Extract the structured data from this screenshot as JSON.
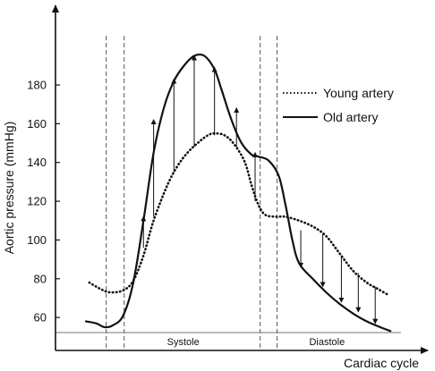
{
  "chart_data": {
    "type": "line",
    "xlabel": "Cardiac cycle",
    "ylabel": "Aortic pressure (mmHg)",
    "ylim": [
      43,
      210
    ],
    "xlim": [
      0,
      1
    ],
    "y_ticks": [
      60,
      80,
      100,
      120,
      140,
      160,
      180
    ],
    "grid": false,
    "legend": {
      "position": "right"
    },
    "phases": [
      {
        "label": "Systole",
        "from": 0.15,
        "to": 0.605
      },
      {
        "label": "Diastole",
        "from": 0.605,
        "to": 1.0
      }
    ],
    "phase_markers": [
      0.15,
      0.203,
      0.605,
      0.655
    ],
    "series": [
      {
        "name": "Young artery",
        "style": "dotted",
        "x": [
          0.1,
          0.13,
          0.16,
          0.2,
          0.23,
          0.26,
          0.29,
          0.33,
          0.36,
          0.39,
          0.42,
          0.45,
          0.47,
          0.5,
          0.53,
          0.56,
          0.58,
          0.6,
          0.62,
          0.65,
          0.68,
          0.72,
          0.76,
          0.8,
          0.84,
          0.88,
          0.92,
          0.95,
          0.98
        ],
        "values": [
          78,
          75,
          73,
          74,
          79,
          92,
          110,
          128,
          138,
          145,
          150,
          154,
          155,
          154,
          149,
          140,
          128,
          118,
          113,
          112,
          112,
          110,
          107,
          102,
          93,
          84,
          78,
          75,
          72
        ]
      },
      {
        "name": "Old artery",
        "style": "solid",
        "x": [
          0.09,
          0.12,
          0.145,
          0.17,
          0.2,
          0.23,
          0.26,
          0.29,
          0.32,
          0.35,
          0.38,
          0.41,
          0.44,
          0.47,
          0.49,
          0.52,
          0.55,
          0.58,
          0.6,
          0.63,
          0.66,
          0.68,
          0.7,
          0.72,
          0.76,
          0.8,
          0.84,
          0.88,
          0.92,
          0.96,
          0.99
        ],
        "values": [
          58,
          57,
          55,
          56,
          61,
          78,
          110,
          145,
          168,
          182,
          190,
          195,
          195,
          188,
          178,
          162,
          150,
          144,
          143,
          141,
          133,
          118,
          100,
          88,
          80,
          73,
          67,
          62,
          58,
          55,
          53
        ]
      }
    ],
    "arrows": [
      {
        "x": 0.26,
        "from": 96,
        "to": 112,
        "direction": "up"
      },
      {
        "x": 0.29,
        "from": 112,
        "to": 162,
        "direction": "up"
      },
      {
        "x": 0.35,
        "from": 135,
        "to": 183,
        "direction": "up"
      },
      {
        "x": 0.41,
        "from": 148,
        "to": 195,
        "direction": "up"
      },
      {
        "x": 0.47,
        "from": 154,
        "to": 189,
        "direction": "up"
      },
      {
        "x": 0.535,
        "from": 148,
        "to": 168,
        "direction": "up"
      },
      {
        "x": 0.59,
        "from": 120,
        "to": 145,
        "direction": "up"
      },
      {
        "x": 0.725,
        "from": 105,
        "to": 86,
        "direction": "down"
      },
      {
        "x": 0.79,
        "from": 103,
        "to": 76,
        "direction": "down"
      },
      {
        "x": 0.845,
        "from": 92,
        "to": 68,
        "direction": "down"
      },
      {
        "x": 0.895,
        "from": 83,
        "to": 63,
        "direction": "down"
      },
      {
        "x": 0.945,
        "from": 76,
        "to": 57,
        "direction": "down"
      }
    ]
  }
}
